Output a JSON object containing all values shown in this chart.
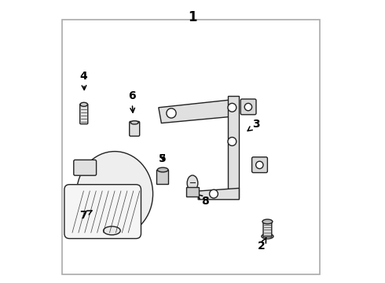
{
  "background_color": "#ffffff",
  "border_color": "#888888",
  "line_color": "#222222",
  "label_color": "#000000",
  "fig_width": 4.9,
  "fig_height": 3.6,
  "dpi": 100
}
